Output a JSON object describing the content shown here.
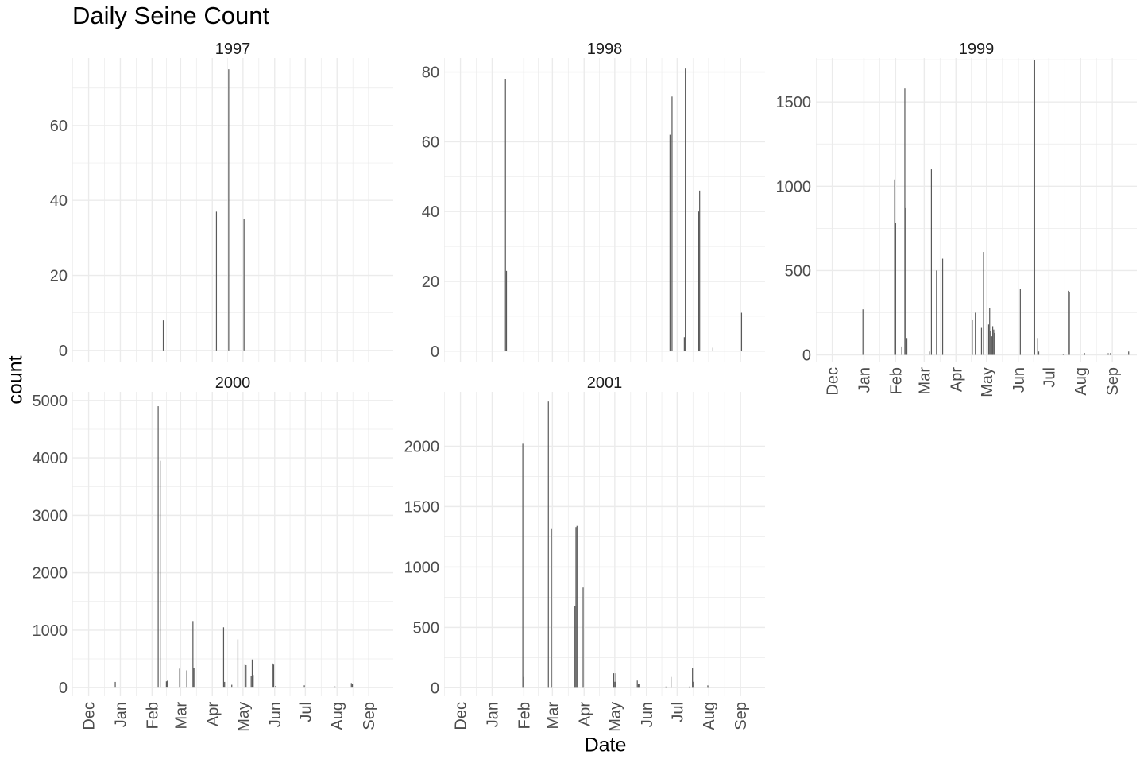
{
  "chart_data": {
    "type": "bar",
    "title": "Daily Seine Count",
    "xlabel": "Date",
    "ylabel": "count",
    "grid": true,
    "legend": "none",
    "bar_color": "#595959",
    "grid_color": "#ebebeb",
    "month_ticks": [
      "Dec",
      "Jan",
      "Feb",
      "Mar",
      "Apr",
      "May",
      "Jun",
      "Jul",
      "Aug",
      "Sep"
    ],
    "xlim": [
      "Nov 15",
      "Sep 25"
    ],
    "panels": [
      {
        "strip": "1997",
        "ylim": [
          -3,
          78
        ],
        "yticks": [
          0,
          20,
          40,
          60
        ],
        "points": [
          {
            "date": "Feb 12",
            "count": 8
          },
          {
            "date": "Apr 05",
            "count": 37
          },
          {
            "date": "Apr 17",
            "count": 75
          },
          {
            "date": "May 02",
            "count": 35
          }
        ]
      },
      {
        "strip": "1998",
        "ylim": [
          -3,
          84
        ],
        "yticks": [
          0,
          20,
          40,
          60,
          80
        ],
        "points": [
          {
            "date": "Jan 14",
            "count": 78
          },
          {
            "date": "Jan 15",
            "count": 23
          },
          {
            "date": "Jun 24",
            "count": 62
          },
          {
            "date": "Jun 26",
            "count": 73
          },
          {
            "date": "Jul 08",
            "count": 4
          },
          {
            "date": "Jul 09",
            "count": 81
          },
          {
            "date": "Jul 22",
            "count": 40
          },
          {
            "date": "Jul 23",
            "count": 46
          },
          {
            "date": "Aug 05",
            "count": 1
          },
          {
            "date": "Sep 02",
            "count": 11
          }
        ]
      },
      {
        "strip": "1999",
        "ylim": [
          -40,
          1760
        ],
        "yticks": [
          0,
          500,
          1000,
          1500
        ],
        "points": [
          {
            "date": "Dec 31",
            "count": 270
          },
          {
            "date": "Jan 31",
            "count": 1040
          },
          {
            "date": "Feb 01",
            "count": 780
          },
          {
            "date": "Feb 07",
            "count": 50
          },
          {
            "date": "Feb 10",
            "count": 1580
          },
          {
            "date": "Feb 11",
            "count": 870
          },
          {
            "date": "Feb 12",
            "count": 100
          },
          {
            "date": "Mar 06",
            "count": 20
          },
          {
            "date": "Mar 08",
            "count": 1100
          },
          {
            "date": "Mar 13",
            "count": 500
          },
          {
            "date": "Mar 19",
            "count": 570
          },
          {
            "date": "Apr 17",
            "count": 210
          },
          {
            "date": "Apr 20",
            "count": 250
          },
          {
            "date": "Apr 26",
            "count": 160
          },
          {
            "date": "Apr 28",
            "count": 610
          },
          {
            "date": "May 03",
            "count": 180
          },
          {
            "date": "May 04",
            "count": 280
          },
          {
            "date": "May 05",
            "count": 140
          },
          {
            "date": "May 06",
            "count": 110
          },
          {
            "date": "May 07",
            "count": 170
          },
          {
            "date": "May 08",
            "count": 150
          },
          {
            "date": "May 09",
            "count": 130
          },
          {
            "date": "Jun 03",
            "count": 390
          },
          {
            "date": "Jun 17",
            "count": 1750
          },
          {
            "date": "Jun 20",
            "count": 100
          },
          {
            "date": "Jun 21",
            "count": 20
          },
          {
            "date": "Jul 15",
            "count": 5
          },
          {
            "date": "Jul 20",
            "count": 380
          },
          {
            "date": "Jul 21",
            "count": 370
          },
          {
            "date": "Aug 05",
            "count": 10
          },
          {
            "date": "Aug 28",
            "count": 10
          },
          {
            "date": "Aug 30",
            "count": 10
          },
          {
            "date": "Sep 17",
            "count": 20
          }
        ]
      },
      {
        "strip": "2000",
        "ylim": [
          -150,
          5150
        ],
        "yticks": [
          0,
          1000,
          2000,
          3000,
          4000,
          5000
        ],
        "points": [
          {
            "date": "Dec 27",
            "count": 100
          },
          {
            "date": "Feb 07",
            "count": 4900
          },
          {
            "date": "Feb 09",
            "count": 3950
          },
          {
            "date": "Feb 15",
            "count": 110
          },
          {
            "date": "Feb 16",
            "count": 120
          },
          {
            "date": "Feb 28",
            "count": 330
          },
          {
            "date": "Mar 07",
            "count": 300
          },
          {
            "date": "Mar 13",
            "count": 1160
          },
          {
            "date": "Mar 14",
            "count": 340
          },
          {
            "date": "Apr 12",
            "count": 1050
          },
          {
            "date": "Apr 13",
            "count": 100
          },
          {
            "date": "Apr 20",
            "count": 50
          },
          {
            "date": "Apr 26",
            "count": 840
          },
          {
            "date": "May 03",
            "count": 400
          },
          {
            "date": "May 04",
            "count": 390
          },
          {
            "date": "May 09",
            "count": 210
          },
          {
            "date": "May 10",
            "count": 490
          },
          {
            "date": "May 11",
            "count": 220
          },
          {
            "date": "May 30",
            "count": 420
          },
          {
            "date": "May 31",
            "count": 400
          },
          {
            "date": "Jun 02",
            "count": 30
          },
          {
            "date": "Jun 30",
            "count": 40
          },
          {
            "date": "Jul 30",
            "count": 20
          },
          {
            "date": "Aug 15",
            "count": 80
          },
          {
            "date": "Aug 16",
            "count": 70
          }
        ]
      },
      {
        "strip": "2001",
        "ylim": [
          -70,
          2450
        ],
        "yticks": [
          0,
          500,
          1000,
          1500,
          2000
        ],
        "points": [
          {
            "date": "Jan 31",
            "count": 2020
          },
          {
            "date": "Feb 01",
            "count": 90
          },
          {
            "date": "Feb 25",
            "count": 2370
          },
          {
            "date": "Feb 28",
            "count": 1320
          },
          {
            "date": "Mar 23",
            "count": 680
          },
          {
            "date": "Mar 24",
            "count": 1330
          },
          {
            "date": "Mar 25",
            "count": 1340
          },
          {
            "date": "Mar 31",
            "count": 830
          },
          {
            "date": "Apr 30",
            "count": 120
          },
          {
            "date": "May 01",
            "count": 50
          },
          {
            "date": "May 02",
            "count": 120
          },
          {
            "date": "May 23",
            "count": 60
          },
          {
            "date": "May 24",
            "count": 30
          },
          {
            "date": "May 25",
            "count": 30
          },
          {
            "date": "Jun 20",
            "count": 10
          },
          {
            "date": "Jun 25",
            "count": 90
          },
          {
            "date": "Jul 13",
            "count": 10
          },
          {
            "date": "Jul 16",
            "count": 160
          },
          {
            "date": "Jul 17",
            "count": 50
          },
          {
            "date": "Jul 31",
            "count": 20
          },
          {
            "date": "Aug 01",
            "count": 10
          }
        ]
      }
    ]
  }
}
